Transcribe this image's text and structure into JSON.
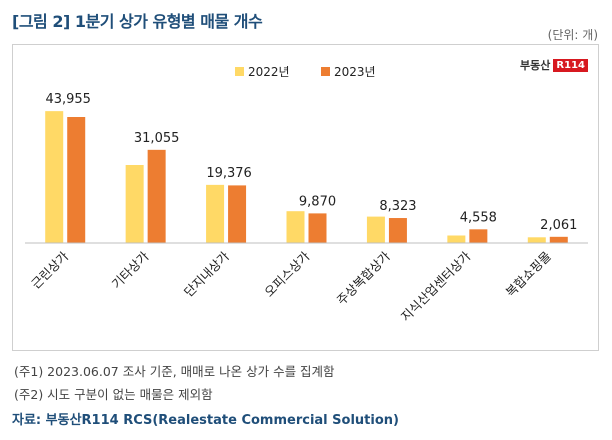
{
  "title": "[그림 2] 1분기 상가 유형별 매물 개수",
  "unit": "(단위: 개)",
  "logo": {
    "text": "부동산",
    "mark": "R114"
  },
  "colors": {
    "series_2022": "#FFD966",
    "series_2023": "#ED7D31",
    "axis": "#bfbfbf"
  },
  "chart_data": {
    "type": "bar",
    "categories": [
      "근린상가",
      "기타상가",
      "단지내상가",
      "오피스상가",
      "주상복합상가",
      "지식산업센터상가",
      "복합쇼핑몰"
    ],
    "series": [
      {
        "name": "2022년",
        "values": [
          43955,
          26000,
          19376,
          10600,
          8800,
          2500,
          1900
        ]
      },
      {
        "name": "2023년",
        "values": [
          42000,
          31055,
          19200,
          9870,
          8323,
          4558,
          2061
        ]
      }
    ],
    "data_labels": [
      "43,955",
      "31,055",
      "19,376",
      "9,870",
      "8,323",
      "4,558",
      "2,061"
    ],
    "label_series": [
      0,
      1,
      0,
      1,
      1,
      1,
      1
    ],
    "ylim": [
      0,
      50000
    ],
    "legend_position": "top-center",
    "grid": false
  },
  "notes": [
    "(주1) 2023.06.07 조사 기준, 매매로 나온 상가 수를 집계함",
    "(주2) 시도 구분이 없는 매물은 제외함"
  ],
  "source": "자료: 부동산R114 RCS(Realestate Commercial Solution)"
}
